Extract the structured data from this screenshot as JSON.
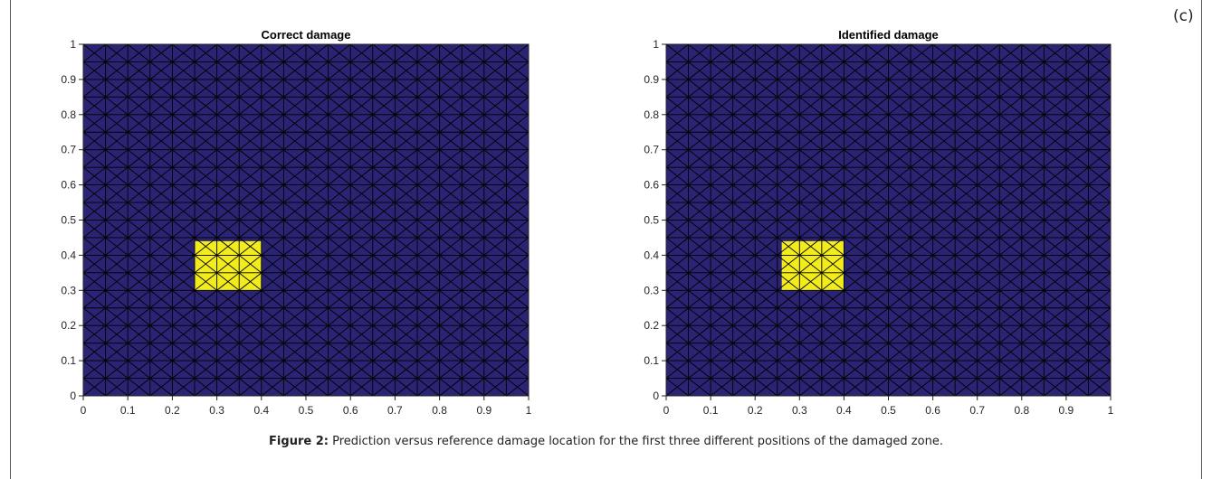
{
  "panel_label": "(c)",
  "caption": {
    "label": "Figure 2:",
    "text": "Prediction versus reference damage location for the first three different positions of the damaged zone."
  },
  "colors": {
    "undamaged": "#2b2373",
    "damaged": "#f2ec1c",
    "mesh": "#000000"
  },
  "chart_data": [
    {
      "type": "heatmap",
      "title": "Correct damage",
      "xlabel": "",
      "ylabel": "",
      "xlim": [
        0,
        1
      ],
      "ylim": [
        0,
        1
      ],
      "xticks": [
        "0",
        "0.1",
        "0.2",
        "0.3",
        "0.4",
        "0.5",
        "0.6",
        "0.7",
        "0.8",
        "0.9",
        "1"
      ],
      "yticks": [
        "0",
        "0.1",
        "0.2",
        "0.3",
        "0.4",
        "0.5",
        "0.6",
        "0.7",
        "0.8",
        "0.9",
        "1"
      ],
      "mesh_divisions": 20,
      "damage_region": {
        "x": [
          0.25,
          0.4
        ],
        "y": [
          0.3,
          0.44
        ]
      },
      "damage_value": 1,
      "background_value": 0
    },
    {
      "type": "heatmap",
      "title": "Identified damage",
      "xlabel": "",
      "ylabel": "",
      "xlim": [
        0,
        1
      ],
      "ylim": [
        0,
        1
      ],
      "xticks": [
        "0",
        "0.1",
        "0.2",
        "0.3",
        "0.4",
        "0.5",
        "0.6",
        "0.7",
        "0.8",
        "0.9",
        "1"
      ],
      "yticks": [
        "0",
        "0.1",
        "0.2",
        "0.3",
        "0.4",
        "0.5",
        "0.6",
        "0.7",
        "0.8",
        "0.9",
        "1"
      ],
      "mesh_divisions": 20,
      "damage_region": {
        "x": [
          0.26,
          0.4
        ],
        "y": [
          0.3,
          0.44
        ]
      },
      "damage_value": 1,
      "background_value": 0
    }
  ]
}
